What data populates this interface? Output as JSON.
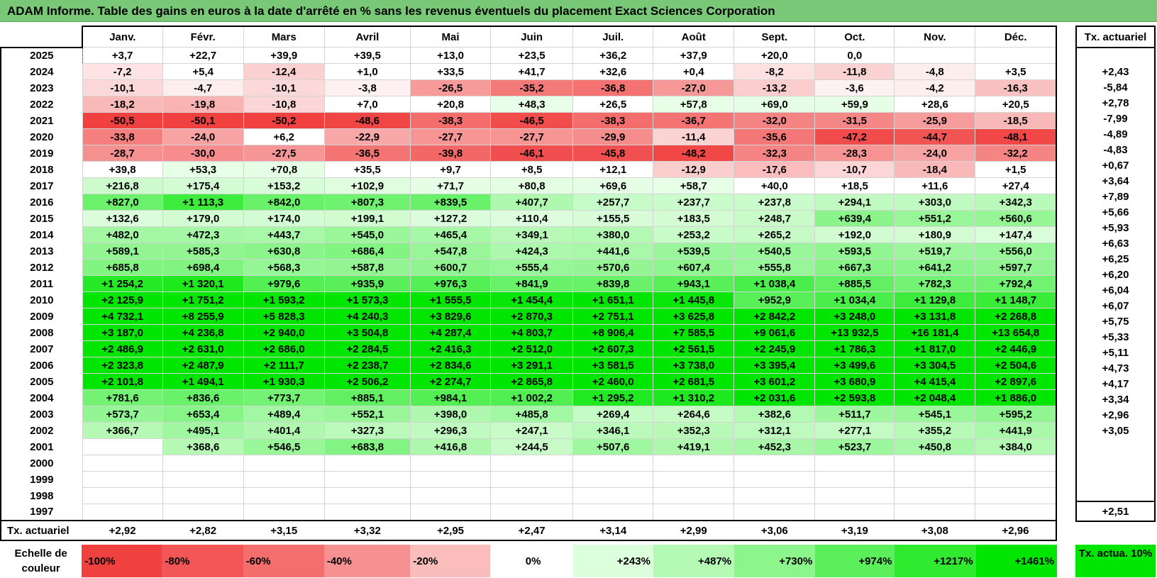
{
  "title": "ADAM Informe. Table des gains en euros à la date d'arrêté en % sans les revenus éventuels du placement Exact Sciences Corporation",
  "months": [
    "Janv.",
    "Févr.",
    "Mars",
    "Avril",
    "Mai",
    "Juin",
    "Juil.",
    "Août",
    "Sept.",
    "Oct.",
    "Nov.",
    "Déc."
  ],
  "tx_header": "Tx. actuariel",
  "footer_label": "Tx. actuariel",
  "footer_values": [
    "+2,92",
    "+2,82",
    "+3,15",
    "+3,32",
    "+2,95",
    "+2,47",
    "+3,14",
    "+2,99",
    "+3,06",
    "+3,19",
    "+3,08",
    "+2,96"
  ],
  "footer_tx": "+2,51",
  "colors": {
    "title_bar": "#78c878",
    "neg_strong": "#f04040",
    "pos_strong": "#00e600",
    "neutral": "#ffffff"
  },
  "rows": [
    {
      "year": "2025",
      "values": [
        "+3,7",
        "+22,7",
        "+39,9",
        "+39,5",
        "+13,0",
        "+23,5",
        "+36,2",
        "+37,9",
        "+20,0",
        "0,0",
        "",
        ""
      ],
      "tx": ""
    },
    {
      "year": "2024",
      "values": [
        "-7,2",
        "+5,4",
        "-12,4",
        "+1,0",
        "+33,5",
        "+41,7",
        "+32,6",
        "+0,4",
        "-8,2",
        "-11,8",
        "-4,8",
        "+3,5"
      ],
      "tx": "+2,43"
    },
    {
      "year": "2023",
      "values": [
        "-10,1",
        "-4,7",
        "-10,1",
        "-3,8",
        "-26,5",
        "-35,2",
        "-36,8",
        "-27,0",
        "-13,2",
        "-3,6",
        "-4,2",
        "-16,3"
      ],
      "tx": "-5,84"
    },
    {
      "year": "2022",
      "values": [
        "-18,2",
        "-19,8",
        "-10,8",
        "+7,0",
        "+20,8",
        "+48,3",
        "+26,5",
        "+57,8",
        "+69,0",
        "+59,9",
        "+28,6",
        "+20,5"
      ],
      "tx": "+2,78"
    },
    {
      "year": "2021",
      "values": [
        "-50,5",
        "-50,1",
        "-50,2",
        "-48,6",
        "-38,3",
        "-46,5",
        "-38,3",
        "-36,7",
        "-32,0",
        "-31,5",
        "-25,9",
        "-18,5"
      ],
      "tx": "-7,99"
    },
    {
      "year": "2020",
      "values": [
        "-33,8",
        "-24,0",
        "+6,2",
        "-22,9",
        "-27,7",
        "-27,7",
        "-29,9",
        "-11,4",
        "-35,6",
        "-47,2",
        "-44,7",
        "-48,1"
      ],
      "tx": "-4,89"
    },
    {
      "year": "2019",
      "values": [
        "-28,7",
        "-30,0",
        "-27,5",
        "-36,5",
        "-39,8",
        "-46,1",
        "-45,8",
        "-48,2",
        "-32,3",
        "-28,3",
        "-24,0",
        "-32,2"
      ],
      "tx": "-4,83"
    },
    {
      "year": "2018",
      "values": [
        "+39,8",
        "+53,3",
        "+70,8",
        "+35,5",
        "+9,7",
        "+8,5",
        "+12,1",
        "-12,9",
        "-17,6",
        "-10,7",
        "-18,4",
        "+1,5"
      ],
      "tx": "+0,67"
    },
    {
      "year": "2017",
      "values": [
        "+216,8",
        "+175,4",
        "+153,2",
        "+102,9",
        "+71,7",
        "+80,8",
        "+69,6",
        "+58,7",
        "+40,0",
        "+18,5",
        "+11,6",
        "+27,4"
      ],
      "tx": "+3,64"
    },
    {
      "year": "2016",
      "values": [
        "+827,0",
        "+1 113,3",
        "+842,0",
        "+807,3",
        "+839,5",
        "+407,7",
        "+257,7",
        "+237,7",
        "+237,8",
        "+294,1",
        "+303,0",
        "+342,3"
      ],
      "tx": "+7,89"
    },
    {
      "year": "2015",
      "values": [
        "+132,6",
        "+179,0",
        "+174,0",
        "+199,1",
        "+127,2",
        "+110,4",
        "+155,5",
        "+183,5",
        "+248,7",
        "+639,4",
        "+551,2",
        "+560,6"
      ],
      "tx": "+5,66"
    },
    {
      "year": "2014",
      "values": [
        "+482,0",
        "+472,3",
        "+443,7",
        "+545,0",
        "+465,4",
        "+349,1",
        "+380,0",
        "+253,2",
        "+265,2",
        "+192,0",
        "+180,9",
        "+147,4"
      ],
      "tx": "+5,93"
    },
    {
      "year": "2013",
      "values": [
        "+589,1",
        "+585,3",
        "+630,8",
        "+686,4",
        "+547,8",
        "+424,3",
        "+441,6",
        "+539,5",
        "+540,5",
        "+593,5",
        "+519,7",
        "+556,0"
      ],
      "tx": "+6,63"
    },
    {
      "year": "2012",
      "values": [
        "+685,8",
        "+698,4",
        "+568,3",
        "+587,8",
        "+600,7",
        "+555,4",
        "+570,6",
        "+607,4",
        "+555,8",
        "+667,3",
        "+641,2",
        "+597,7"
      ],
      "tx": "+6,25"
    },
    {
      "year": "2011",
      "values": [
        "+1 254,2",
        "+1 320,1",
        "+979,6",
        "+935,9",
        "+976,3",
        "+841,9",
        "+839,8",
        "+943,1",
        "+1 038,4",
        "+885,5",
        "+782,3",
        "+792,4"
      ],
      "tx": "+6,20"
    },
    {
      "year": "2010",
      "values": [
        "+2 125,9",
        "+1 751,2",
        "+1 593,2",
        "+1 573,3",
        "+1 555,5",
        "+1 454,4",
        "+1 651,1",
        "+1 445,8",
        "+952,9",
        "+1 034,4",
        "+1 129,8",
        "+1 148,7"
      ],
      "tx": "+6,04"
    },
    {
      "year": "2009",
      "values": [
        "+4 732,1",
        "+8 255,9",
        "+5 828,3",
        "+4 240,3",
        "+3 829,6",
        "+2 870,3",
        "+2 751,1",
        "+3 625,8",
        "+2 842,2",
        "+3 248,0",
        "+3 131,8",
        "+2 268,8"
      ],
      "tx": "+6,07"
    },
    {
      "year": "2008",
      "values": [
        "+3 187,0",
        "+4 236,8",
        "+2 940,0",
        "+3 504,8",
        "+4 287,4",
        "+4 803,7",
        "+8 906,4",
        "+7 585,5",
        "+9 061,6",
        "+13 932,5",
        "+16 181,4",
        "+13 654,8"
      ],
      "tx": "+5,75"
    },
    {
      "year": "2007",
      "values": [
        "+2 486,9",
        "+2 631,0",
        "+2 686,0",
        "+2 284,5",
        "+2 416,3",
        "+2 512,0",
        "+2 607,3",
        "+2 561,5",
        "+2 245,9",
        "+1 786,3",
        "+1 817,0",
        "+2 446,9"
      ],
      "tx": "+5,33"
    },
    {
      "year": "2006",
      "values": [
        "+2 323,8",
        "+2 487,9",
        "+2 111,7",
        "+2 238,7",
        "+2 834,6",
        "+3 291,1",
        "+3 581,5",
        "+3 738,0",
        "+3 395,4",
        "+3 499,6",
        "+3 304,5",
        "+2 504,6"
      ],
      "tx": "+5,11"
    },
    {
      "year": "2005",
      "values": [
        "+2 101,8",
        "+1 494,1",
        "+1 930,3",
        "+2 506,2",
        "+2 274,7",
        "+2 865,8",
        "+2 460,0",
        "+2 681,5",
        "+3 601,2",
        "+3 680,9",
        "+4 415,4",
        "+2 897,6"
      ],
      "tx": "+4,73"
    },
    {
      "year": "2004",
      "values": [
        "+781,6",
        "+836,6",
        "+773,7",
        "+885,1",
        "+984,1",
        "+1 002,2",
        "+1 295,2",
        "+1 310,2",
        "+2 031,6",
        "+2 593,8",
        "+2 048,4",
        "+1 886,0"
      ],
      "tx": "+4,17"
    },
    {
      "year": "2003",
      "values": [
        "+573,7",
        "+653,4",
        "+489,4",
        "+552,1",
        "+398,0",
        "+485,8",
        "+269,4",
        "+264,6",
        "+382,6",
        "+511,7",
        "+545,1",
        "+595,2"
      ],
      "tx": "+3,34"
    },
    {
      "year": "2002",
      "values": [
        "+366,7",
        "+495,1",
        "+401,4",
        "+327,3",
        "+296,3",
        "+247,1",
        "+346,1",
        "+352,3",
        "+312,1",
        "+277,1",
        "+355,2",
        "+441,9"
      ],
      "tx": "+2,96"
    },
    {
      "year": "2001",
      "values": [
        "",
        "+368,6",
        "+546,5",
        "+683,8",
        "+416,8",
        "+244,5",
        "+507,6",
        "+419,1",
        "+452,3",
        "+523,7",
        "+450,8",
        "+384,0"
      ],
      "tx": "+3,05"
    },
    {
      "year": "2000",
      "values": [
        "",
        "",
        "",
        "",
        "",
        "",
        "",
        "",
        "",
        "",
        "",
        ""
      ],
      "tx": ""
    },
    {
      "year": "1999",
      "values": [
        "",
        "",
        "",
        "",
        "",
        "",
        "",
        "",
        "",
        "",
        "",
        ""
      ],
      "tx": ""
    },
    {
      "year": "1998",
      "values": [
        "",
        "",
        "",
        "",
        "",
        "",
        "",
        "",
        "",
        "",
        "",
        ""
      ],
      "tx": ""
    },
    {
      "year": "1997",
      "values": [
        "",
        "",
        "",
        "",
        "",
        "",
        "",
        "",
        "",
        "",
        "",
        ""
      ],
      "tx": ""
    }
  ],
  "legend": {
    "label": "Echelle de couleur",
    "scale": [
      {
        "text": "-100%",
        "color": "#f04040"
      },
      {
        "text": "-80%",
        "color": "#f25656"
      },
      {
        "text": "-60%",
        "color": "#f46e6e"
      },
      {
        "text": "-40%",
        "color": "#f79090"
      },
      {
        "text": "-20%",
        "color": "#fbbcbc"
      },
      {
        "text": "0%",
        "color": "#ffffff"
      },
      {
        "text": "+243%",
        "color": "#dcffdc"
      },
      {
        "text": "+487%",
        "color": "#b4fab4"
      },
      {
        "text": "+730%",
        "color": "#8cf58c"
      },
      {
        "text": "+974%",
        "color": "#5cef5c"
      },
      {
        "text": "+1217%",
        "color": "#30ea30"
      },
      {
        "text": "+1461%",
        "color": "#00e600"
      }
    ],
    "tx_label": "Tx. actua. 10%",
    "tx_color": "#00e600"
  }
}
